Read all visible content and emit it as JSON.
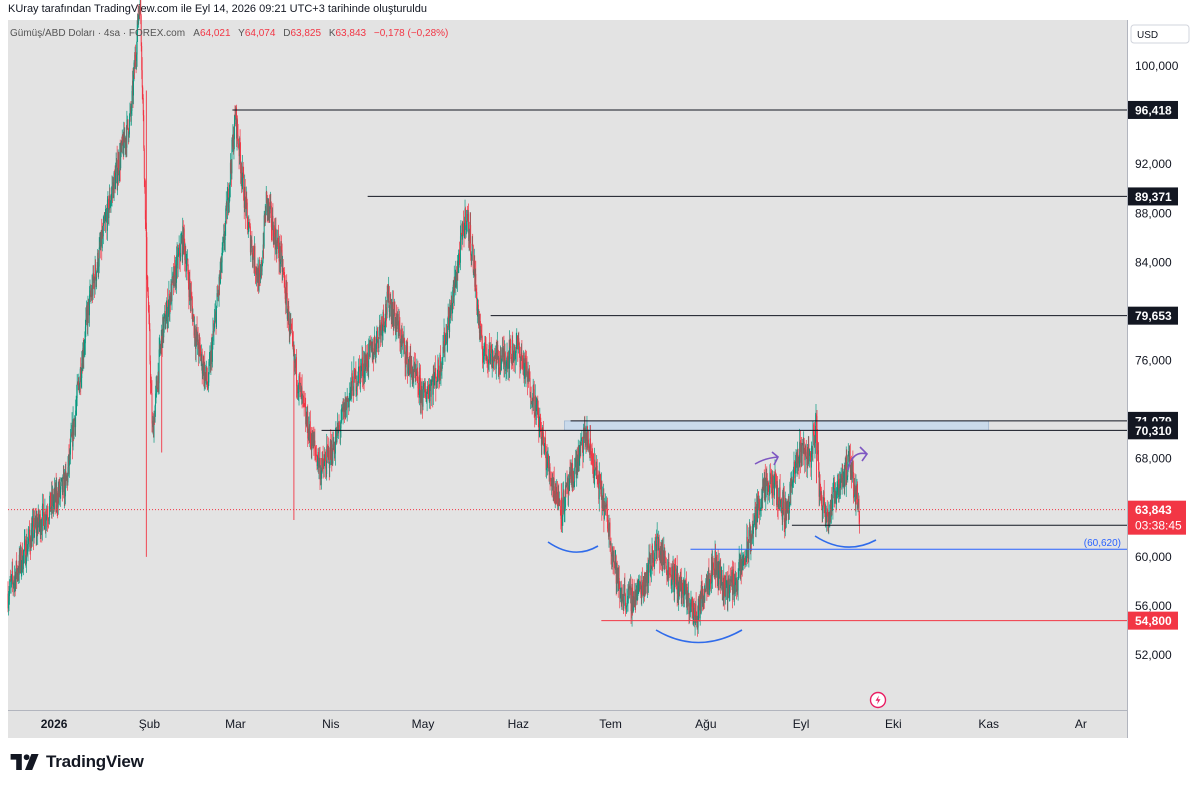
{
  "header": {
    "title": "KUray tarafından TradingView.com ile Eyl 14, 2026 09:21 UTC+3 tarihinde oluşturuldu"
  },
  "legend": {
    "symbol": "Gümüş/ABD Doları · 4sa · FOREX.com",
    "open_label": "A",
    "open": "64,021",
    "high_label": "Y",
    "high": "64,074",
    "low_label": "D",
    "low": "63,825",
    "close_label": "K",
    "close": "63,843",
    "change": "−0,178 (−0,28%)"
  },
  "currency": "USD",
  "footer": {
    "brand": "TradingView"
  },
  "colors": {
    "up": "#089981",
    "down": "#f23645",
    "background": "#e3e3e3",
    "level_line": "#131722",
    "accent_blue": "#2962ff",
    "arc_blue": "#2f6bea",
    "arrow_purple": "#7e57c2",
    "zone": "#c9daec"
  },
  "chart_data": {
    "type": "candlestick",
    "title": "Gümüş/ABD Doları · 4sa · FOREX.com",
    "y_axis": {
      "ticks": [
        52000,
        56000,
        60000,
        68000,
        76000,
        84000,
        88000,
        92000,
        100000
      ],
      "tick_labels": [
        "52,000",
        "56,000",
        "60,000",
        "68,000",
        "76,000",
        "84,000",
        "88,000",
        "92,000",
        "100,000"
      ],
      "range": [
        48000,
        105000
      ]
    },
    "x_axis": {
      "labels": [
        "2026",
        "Şub",
        "Mar",
        "Nis",
        "May",
        "Haz",
        "Tem",
        "Ağu",
        "Eyl",
        "Eki",
        "Kas",
        "Ar"
      ],
      "range": [
        "2025-12-17",
        "2026-12-16"
      ]
    },
    "price_path": [
      [
        "2025-12-17",
        57000
      ],
      [
        "2025-12-25",
        62000
      ],
      [
        "2026-01-05",
        66000
      ],
      [
        "2026-01-12",
        80000
      ],
      [
        "2026-01-20",
        90000
      ],
      [
        "2026-01-26",
        96000
      ],
      [
        "2026-01-29",
        106000
      ],
      [
        "2026-01-31",
        85000
      ],
      [
        "2026-02-02",
        70000
      ],
      [
        "2026-02-05",
        78000
      ],
      [
        "2026-02-12",
        86000
      ],
      [
        "2026-02-16",
        78000
      ],
      [
        "2026-02-20",
        74000
      ],
      [
        "2026-02-25",
        85000
      ],
      [
        "2026-03-01",
        96000
      ],
      [
        "2026-03-05",
        87000
      ],
      [
        "2026-03-09",
        82000
      ],
      [
        "2026-03-11",
        89000
      ],
      [
        "2026-03-16",
        84000
      ],
      [
        "2026-03-20",
        76000
      ],
      [
        "2026-03-24",
        71000
      ],
      [
        "2026-03-29",
        67000
      ],
      [
        "2026-04-02",
        69000
      ],
      [
        "2026-04-08",
        74000
      ],
      [
        "2026-04-15",
        77000
      ],
      [
        "2026-04-20",
        81000
      ],
      [
        "2026-04-26",
        76000
      ],
      [
        "2026-05-01",
        73000
      ],
      [
        "2026-05-06",
        75000
      ],
      [
        "2026-05-10",
        80000
      ],
      [
        "2026-05-15",
        88000
      ],
      [
        "2026-05-17",
        85000
      ],
      [
        "2026-05-20",
        77000
      ],
      [
        "2026-05-26",
        76000
      ],
      [
        "2026-06-01",
        77000
      ],
      [
        "2026-06-06",
        73000
      ],
      [
        "2026-06-11",
        67000
      ],
      [
        "2026-06-15",
        64000
      ],
      [
        "2026-06-18",
        66000
      ],
      [
        "2026-06-23",
        70000
      ],
      [
        "2026-06-26",
        67000
      ],
      [
        "2026-06-30",
        63000
      ],
      [
        "2026-07-04",
        57000
      ],
      [
        "2026-07-08",
        56500
      ],
      [
        "2026-07-12",
        58000
      ],
      [
        "2026-07-16",
        61000
      ],
      [
        "2026-07-20",
        59000
      ],
      [
        "2026-07-25",
        57000
      ],
      [
        "2026-07-29",
        55000
      ],
      [
        "2026-08-01",
        58000
      ],
      [
        "2026-08-04",
        59500
      ],
      [
        "2026-08-07",
        57500
      ],
      [
        "2026-08-11",
        58000
      ],
      [
        "2026-08-15",
        61000
      ],
      [
        "2026-08-19",
        65000
      ],
      [
        "2026-08-23",
        66000
      ],
      [
        "2026-08-27",
        63500
      ],
      [
        "2026-08-30",
        67000
      ],
      [
        "2026-09-01",
        69000
      ],
      [
        "2026-09-04",
        68000
      ],
      [
        "2026-09-06",
        71000
      ],
      [
        "2026-09-07",
        65000
      ],
      [
        "2026-09-10",
        63500
      ],
      [
        "2026-09-13",
        66000
      ],
      [
        "2026-09-17",
        67500
      ],
      [
        "2026-09-20",
        63843
      ]
    ],
    "horizontal_levels": [
      {
        "price": 96418,
        "label": "96,418",
        "start": "2026-02-28"
      },
      {
        "price": 89371,
        "label": "89,371",
        "start": "2026-04-13"
      },
      {
        "price": 79653,
        "label": "79,653",
        "start": "2026-05-23"
      },
      {
        "price": 71079,
        "label": "71,079",
        "start": "2026-06-18"
      },
      {
        "price": 70310,
        "label": "70,310",
        "start": "2026-03-29"
      },
      {
        "price": 62570,
        "label": "62,570",
        "start": "2026-08-29"
      }
    ],
    "support_level": {
      "price": 54800,
      "label": "54,800",
      "start": "2026-06-28"
    },
    "horizontal_ray": {
      "price": 60620,
      "label": "(60,620)",
      "start": "2026-07-27"
    },
    "zone": {
      "low": 70310,
      "high": 71079,
      "start": "2026-06-16",
      "end": "2026-11-01"
    },
    "last_price": {
      "price": 63843,
      "label": "63,843",
      "countdown": "03:38:45"
    }
  }
}
